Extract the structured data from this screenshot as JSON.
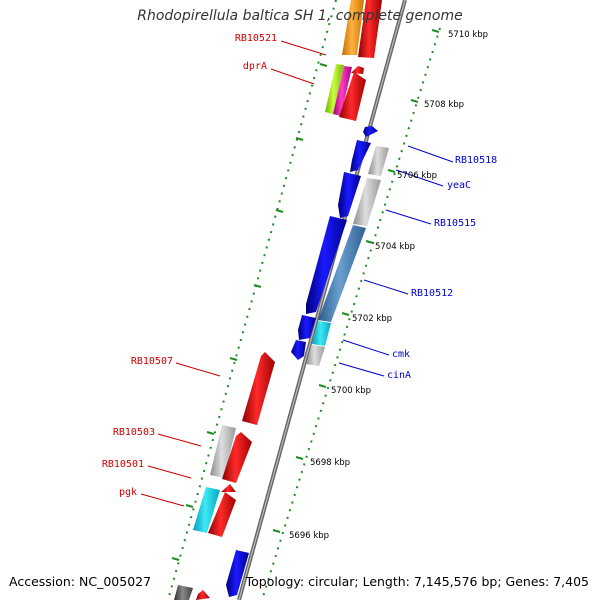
{
  "title": "Rhodopirellula baltica SH 1, complete genome",
  "accession_text": "Accession: NC_005027",
  "topology_text": "Topology: circular; Length: 7,145,576 bp; Genes: 7,405",
  "tick_labels": [
    "5710 kbp",
    "5708 kbp",
    "5706 kbp",
    "5704 kbp",
    "5702 kbp",
    "5700 kbp",
    "5698 kbp",
    "5696 kbp"
  ],
  "gene_labels_left": [
    "RB10521",
    "dprA",
    "RB10507",
    "RB10503",
    "RB10501",
    "pgk"
  ],
  "gene_labels_right": [
    "RB10518",
    "yeaC",
    "RB10515",
    "RB10512",
    "cmk",
    "cinA"
  ],
  "colors": {
    "backbone": "#888888",
    "gc_dots": "#228b22",
    "forward_genes": "#e00000",
    "reverse_genes": "#0000e6",
    "left_label": "#cc0000",
    "right_label": "#0000cc",
    "grey_gene": "#b8b8b8",
    "steel_blue_gene": "#4a7fb5",
    "cyan_gene": "#1ec8d8"
  }
}
